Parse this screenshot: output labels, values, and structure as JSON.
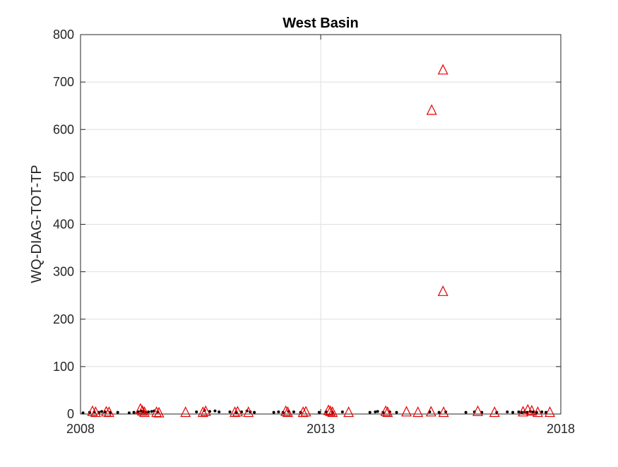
{
  "chart_data": {
    "type": "scatter",
    "title": "West Basin",
    "xlabel": "",
    "ylabel": "WQ-DIAG-TOT-TP",
    "xlim": [
      "2008-01-01",
      "2018-01-01"
    ],
    "ylim": [
      0,
      800
    ],
    "xticks": [
      "2008",
      "2013",
      "2018"
    ],
    "yticks": [
      0,
      100,
      200,
      300,
      400,
      500,
      600,
      700,
      800
    ],
    "grid": true,
    "legend": "none",
    "series": [
      {
        "marker": "dot",
        "color": "#000000",
        "points": [
          {
            "x": "2008-01-20",
            "y": 1
          },
          {
            "x": "2008-03-10",
            "y": 2
          },
          {
            "x": "2008-04-15",
            "y": 3
          },
          {
            "x": "2008-05-20",
            "y": 2
          },
          {
            "x": "2008-06-10",
            "y": 4
          },
          {
            "x": "2008-07-05",
            "y": 3
          },
          {
            "x": "2008-08-15",
            "y": 2
          },
          {
            "x": "2008-10-10",
            "y": 2
          },
          {
            "x": "2009-01-05",
            "y": 1
          },
          {
            "x": "2009-02-10",
            "y": 2
          },
          {
            "x": "2009-03-15",
            "y": 3
          },
          {
            "x": "2009-04-05",
            "y": 5
          },
          {
            "x": "2009-04-20",
            "y": 4
          },
          {
            "x": "2009-05-10",
            "y": 2
          },
          {
            "x": "2009-06-01",
            "y": 3
          },
          {
            "x": "2009-06-25",
            "y": 4
          },
          {
            "x": "2009-07-15",
            "y": 5
          },
          {
            "x": "2009-08-10",
            "y": 3
          },
          {
            "x": "2010-06-01",
            "y": 3
          },
          {
            "x": "2010-08-01",
            "y": 6
          },
          {
            "x": "2010-09-10",
            "y": 4
          },
          {
            "x": "2010-10-20",
            "y": 5
          },
          {
            "x": "2010-11-20",
            "y": 3
          },
          {
            "x": "2011-02-10",
            "y": 3
          },
          {
            "x": "2011-04-01",
            "y": 2
          },
          {
            "x": "2011-05-10",
            "y": 3
          },
          {
            "x": "2011-06-20",
            "y": 5
          },
          {
            "x": "2011-07-15",
            "y": 3
          },
          {
            "x": "2011-08-15",
            "y": 2
          },
          {
            "x": "2012-01-10",
            "y": 2
          },
          {
            "x": "2012-02-15",
            "y": 3
          },
          {
            "x": "2012-03-20",
            "y": 2
          },
          {
            "x": "2012-05-01",
            "y": 4
          },
          {
            "x": "2012-06-10",
            "y": 3
          },
          {
            "x": "2012-08-01",
            "y": 2
          },
          {
            "x": "2012-12-20",
            "y": 2
          },
          {
            "x": "2013-02-10",
            "y": 3
          },
          {
            "x": "2013-04-01",
            "y": 2
          },
          {
            "x": "2013-06-15",
            "y": 3
          },
          {
            "x": "2014-01-10",
            "y": 2
          },
          {
            "x": "2014-02-20",
            "y": 3
          },
          {
            "x": "2014-03-10",
            "y": 4
          },
          {
            "x": "2014-04-20",
            "y": 2
          },
          {
            "x": "2014-06-10",
            "y": 3
          },
          {
            "x": "2014-08-01",
            "y": 2
          },
          {
            "x": "2015-04-10",
            "y": 3
          },
          {
            "x": "2015-06-20",
            "y": 2
          },
          {
            "x": "2015-08-10",
            "y": 3
          },
          {
            "x": "2016-01-10",
            "y": 2
          },
          {
            "x": "2016-03-15",
            "y": 3
          },
          {
            "x": "2016-05-10",
            "y": 2
          },
          {
            "x": "2016-09-01",
            "y": 2
          },
          {
            "x": "2016-11-20",
            "y": 3
          },
          {
            "x": "2017-01-01",
            "y": 2
          },
          {
            "x": "2017-02-15",
            "y": 3
          },
          {
            "x": "2017-03-10",
            "y": 2
          },
          {
            "x": "2017-04-01",
            "y": 3
          },
          {
            "x": "2017-04-20",
            "y": 2
          },
          {
            "x": "2017-05-15",
            "y": 4
          },
          {
            "x": "2017-06-05",
            "y": 3
          },
          {
            "x": "2017-07-01",
            "y": 2
          },
          {
            "x": "2017-08-10",
            "y": 3
          },
          {
            "x": "2017-09-10",
            "y": 2
          }
        ]
      },
      {
        "marker": "triangle",
        "color": "#e60000",
        "points": [
          {
            "x": "2008-04-01",
            "y": 5
          },
          {
            "x": "2008-04-25",
            "y": 3
          },
          {
            "x": "2008-07-15",
            "y": 4
          },
          {
            "x": "2008-08-05",
            "y": 3
          },
          {
            "x": "2009-04-01",
            "y": 10
          },
          {
            "x": "2009-04-15",
            "y": 6
          },
          {
            "x": "2009-05-01",
            "y": 3
          },
          {
            "x": "2009-08-01",
            "y": 3
          },
          {
            "x": "2009-08-20",
            "y": 2
          },
          {
            "x": "2010-03-10",
            "y": 3
          },
          {
            "x": "2010-07-20",
            "y": 3
          },
          {
            "x": "2010-08-10",
            "y": 5
          },
          {
            "x": "2011-03-20",
            "y": 3
          },
          {
            "x": "2011-04-10",
            "y": 4
          },
          {
            "x": "2011-07-01",
            "y": 3
          },
          {
            "x": "2012-04-10",
            "y": 5
          },
          {
            "x": "2012-04-25",
            "y": 3
          },
          {
            "x": "2012-08-20",
            "y": 3
          },
          {
            "x": "2012-09-10",
            "y": 4
          },
          {
            "x": "2013-03-01",
            "y": 7
          },
          {
            "x": "2013-03-15",
            "y": 5
          },
          {
            "x": "2013-04-01",
            "y": 3
          },
          {
            "x": "2013-08-01",
            "y": 3
          },
          {
            "x": "2014-05-10",
            "y": 5
          },
          {
            "x": "2014-05-25",
            "y": 3
          },
          {
            "x": "2014-10-15",
            "y": 4
          },
          {
            "x": "2015-01-10",
            "y": 3
          },
          {
            "x": "2015-04-20",
            "y": 4
          },
          {
            "x": "2015-04-25",
            "y": 640
          },
          {
            "x": "2015-07-20",
            "y": 725
          },
          {
            "x": "2015-07-20",
            "y": 258
          },
          {
            "x": "2015-07-25",
            "y": 3
          },
          {
            "x": "2016-04-10",
            "y": 5
          },
          {
            "x": "2016-08-15",
            "y": 3
          },
          {
            "x": "2017-03-20",
            "y": 4
          },
          {
            "x": "2017-04-25",
            "y": 8
          },
          {
            "x": "2017-05-25",
            "y": 6
          },
          {
            "x": "2017-07-10",
            "y": 3
          },
          {
            "x": "2017-10-10",
            "y": 3
          }
        ]
      }
    ]
  }
}
